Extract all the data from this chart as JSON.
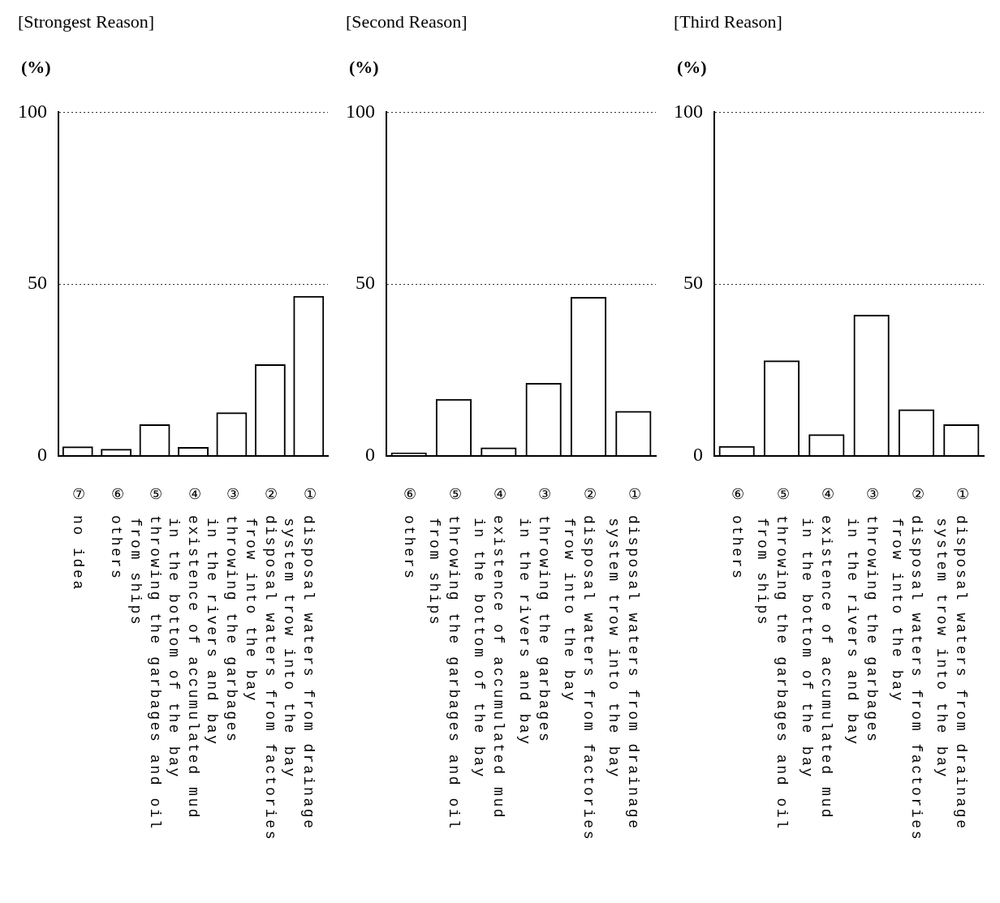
{
  "chart_data": [
    {
      "type": "bar",
      "title": "[Strongest Reason]",
      "ylabel": "(%)",
      "categories": [
        "⑦ no idea",
        "⑥ others",
        "⑤ throwing the garbages and oil\n   from ships",
        "④ existence of accumulated mud\n   in the bottom of the bay",
        "③ throwing the garbages\n   in the rivers and bay",
        "② disposal waters from factories\n   frow into the bay",
        "① disposal waters from drainage\n   system trow into the bay"
      ],
      "values": [
        2.7,
        2.0,
        9.1,
        2.5,
        12.6,
        26.6,
        46.5
      ],
      "color": "#000000",
      "ylim": [
        0,
        100
      ],
      "yticks": [
        0,
        50,
        100
      ],
      "grid": "y"
    },
    {
      "type": "bar",
      "title": "[Second Reason]",
      "ylabel": "(%)",
      "categories": [
        "⑥ others",
        "⑤ throwing the garbages and oil\n   from ships",
        "④ existence of accumulated mud\n   in the bottom of the bay",
        "③ throwing the garbages\n   in the rivers and bay",
        "② disposal waters from factories\n   frow into the bay",
        "① disposal waters from drainage\n   system trow into the bay"
      ],
      "values": [
        0.9,
        16.5,
        2.4,
        21.2,
        46.2,
        13.0
      ],
      "color": "#000000",
      "ylim": [
        0,
        100
      ],
      "yticks": [
        0,
        50,
        100
      ],
      "grid": "y"
    },
    {
      "type": "bar",
      "title": "[Third Reason]",
      "ylabel": "(%)",
      "categories": [
        "⑥ others",
        "⑤ throwing the garbages and oil\n   from ships",
        "④ existence of accumulated mud\n   in the bottom of the bay",
        "③ throwing the garbages\n   in the rivers and bay",
        "② disposal waters from factories\n   frow into the bay",
        "① disposal waters from drainage\n   system trow into the bay"
      ],
      "values": [
        2.8,
        27.7,
        6.2,
        41.0,
        13.5,
        9.1
      ],
      "color": "#000000",
      "ylim": [
        0,
        100
      ],
      "yticks": [
        0,
        50,
        100
      ],
      "grid": "y"
    }
  ]
}
